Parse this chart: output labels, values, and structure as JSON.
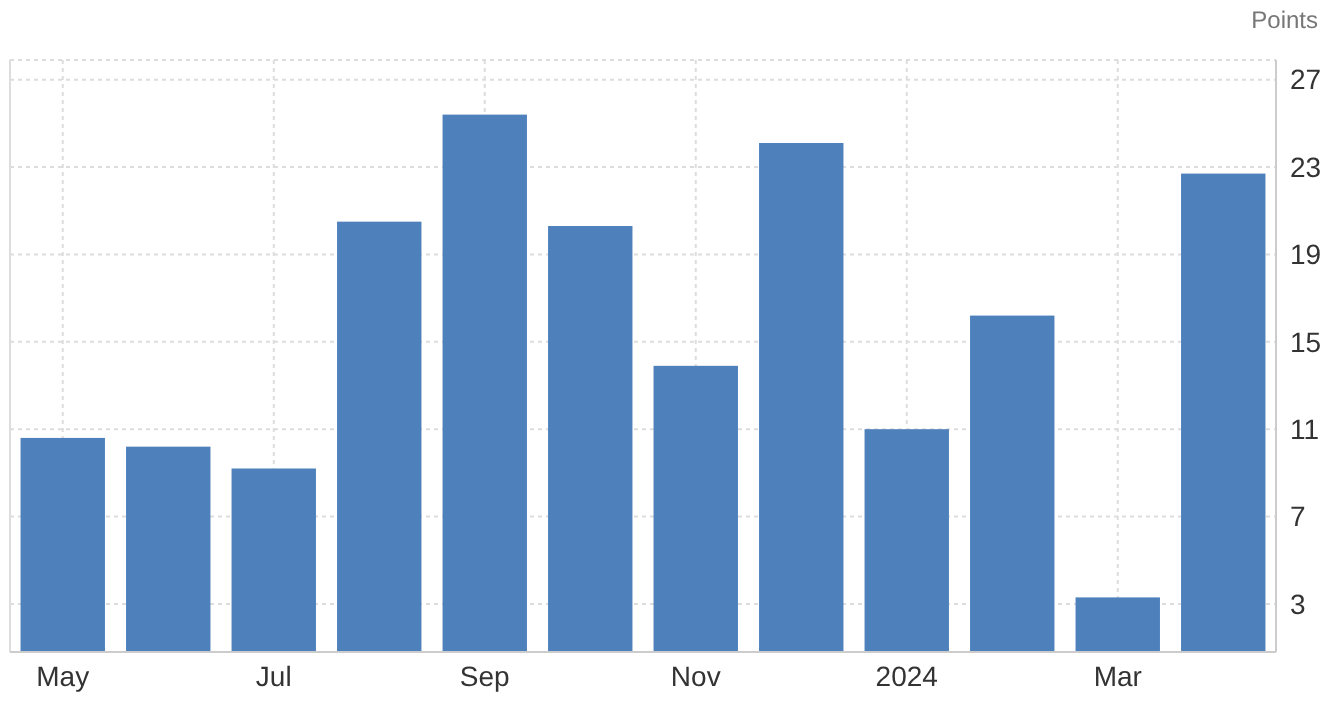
{
  "chart_data": {
    "type": "bar",
    "ylabel": "Points",
    "categories": [
      "May",
      null,
      "Jul",
      null,
      "Sep",
      null,
      "Nov",
      null,
      "2024",
      null,
      "Mar",
      null
    ],
    "values": [
      10.6,
      10.2,
      9.2,
      20.5,
      25.4,
      20.3,
      13.9,
      24.1,
      11.0,
      16.2,
      3.3,
      22.7
    ],
    "color": "#4e80bc",
    "ylim": [
      0.8,
      27.9
    ],
    "yticks": [
      3,
      7,
      11,
      15,
      19,
      23,
      27
    ],
    "grid": true
  }
}
